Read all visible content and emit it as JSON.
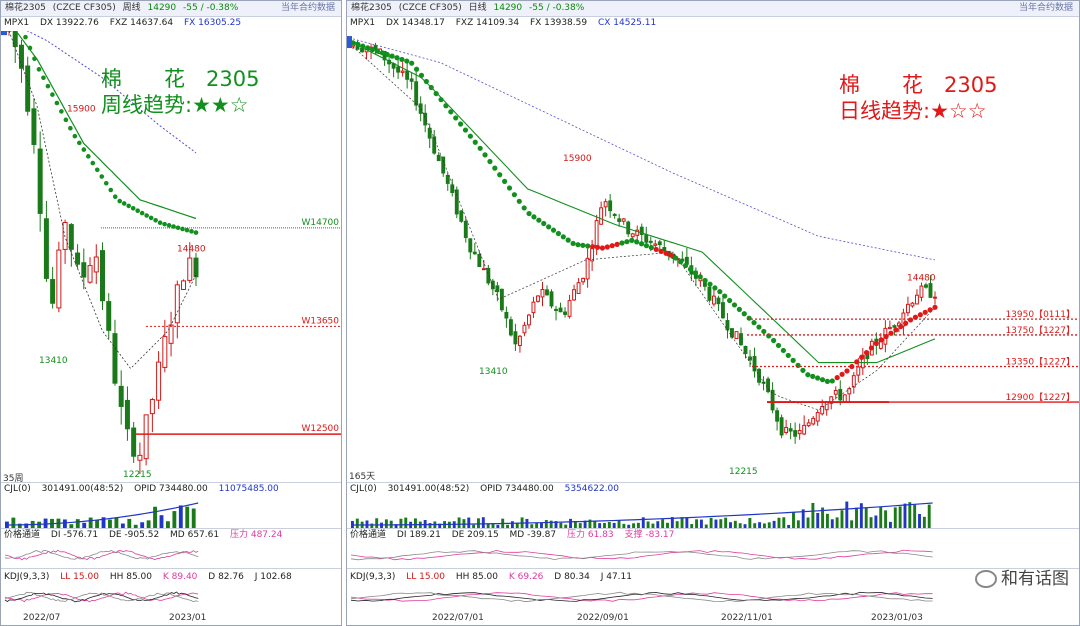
{
  "left": {
    "titlebar": {
      "symbol": "棉花2305",
      "code": "(CZCE CF305)",
      "period": "周线",
      "last": "14290",
      "change": "-55 / -0.38%",
      "right": "当年合约数据"
    },
    "ma_bar": {
      "name": "MPX1",
      "dx": "DX 13922.76",
      "fxz": "FXZ 14637.64",
      "fx": "FX 16305.25"
    },
    "trend_title": "棉　　花　2305",
    "trend_line": "周线趋势:★★☆",
    "bars_label": "35周",
    "cjl_bar": {
      "name": "CJL(0)",
      "v1": "301491.00(48:52)",
      "opid": "OPID 734480.00",
      "v3": "11075485.00"
    },
    "price_bar": {
      "name": "价格通道",
      "di": "DI -576.71",
      "de": "DE -905.52",
      "md": "MD 657.61",
      "zl": "压力 487.24"
    },
    "kdj_bar": {
      "name": "KDJ(9,3,3)",
      "ll": "LL 15.00",
      "hh": "HH 85.00",
      "k": "K 89.40",
      "d": "D 82.76",
      "j": "J 102.68"
    },
    "xlabels": [
      "2022/07",
      "2023/01"
    ],
    "level_labels": {
      "w14700": "W14700",
      "w13650": "W13650",
      "w12500": "W12500"
    },
    "price_labels": {
      "high": "15900",
      "mid": "13410",
      "low": "12215",
      "last": "14480"
    }
  },
  "right": {
    "titlebar": {
      "symbol": "棉花2305",
      "code": "(CZCE CF305)",
      "period": "日线",
      "last": "14290",
      "change": "-55 / -0.38%",
      "right": "当年合约数据"
    },
    "ma_bar": {
      "name": "MPX1",
      "dx": "DX 14348.17",
      "fxz": "FXZ 14109.34",
      "fx": "FX 13938.59",
      "cx": "CX 14525.11"
    },
    "trend_title": "棉　　花　2305",
    "trend_line": "日线趋势:★☆☆",
    "bars_label": "165天",
    "cjl_bar": {
      "name": "CJL(0)",
      "v1": "301491.00(48:52)",
      "opid": "OPID 734480.00",
      "v3": "5354622.00"
    },
    "price_bar": {
      "name": "价格通道",
      "di": "DI 189.21",
      "de": "DE 209.15",
      "md": "MD -39.87",
      "zl": "压力 61.83",
      "zc": "支撑 -83.17"
    },
    "kdj_bar": {
      "name": "KDJ(9,3,3)",
      "ll": "LL 15.00",
      "hh": "HH 85.00",
      "k": "K 69.26",
      "d": "D 80.34",
      "j": "J 47.11"
    },
    "xlabels": [
      "2022/07/01",
      "2022/09/01",
      "2022/11/01",
      "2023/01/03"
    ],
    "level_labels": [
      "13950【0111】",
      "13750【1227】",
      "13350【1227】",
      "12900【1227】"
    ],
    "price_labels": {
      "high": "15900",
      "mid": "13410",
      "low": "12215",
      "last": "14480"
    }
  },
  "watermark": "和有话图",
  "colors": {
    "up": "#d01818",
    "down": "#1a7a1a",
    "trend_green": "#12901e",
    "trend_red": "#e01818",
    "level_red": "#e01818",
    "level_green": "#12901e",
    "ma_blue": "#5050d0"
  },
  "chart_data": [
    {
      "type": "candlestick",
      "title": "棉花2305 周线",
      "timeframe": "weekly",
      "ylim": [
        12000,
        16800
      ],
      "x_range": [
        "2022/07",
        "2023/01"
      ],
      "key_prices": {
        "high": 15900,
        "swing_low": 13410,
        "low": 12215,
        "recent_high": 14480,
        "last": 14290
      },
      "levels": [
        {
          "label": "W14700",
          "value": 14700
        },
        {
          "label": "W13650",
          "value": 13650
        },
        {
          "label": "W12500",
          "value": 12500
        }
      ],
      "indicators": {
        "DX": 13922.76,
        "FXZ": 14637.64,
        "FX": 16305.25
      }
    },
    {
      "type": "candlestick",
      "title": "棉花2305 日线",
      "timeframe": "daily",
      "ylim": [
        11900,
        17600
      ],
      "x_range": [
        "2022/07/01",
        "2023/01/03"
      ],
      "key_prices": {
        "high": 15900,
        "swing_low": 13410,
        "low": 12215,
        "recent_high": 14480,
        "last": 14290
      },
      "levels": [
        {
          "label": "13950【0111】",
          "value": 13950
        },
        {
          "label": "13750【1227】",
          "value": 13750
        },
        {
          "label": "13350【1227】",
          "value": 13350
        },
        {
          "label": "12900【1227】",
          "value": 12900
        }
      ],
      "indicators": {
        "DX": 14348.17,
        "FXZ": 14109.34,
        "FX": 13938.59,
        "CX": 14525.11
      }
    }
  ]
}
